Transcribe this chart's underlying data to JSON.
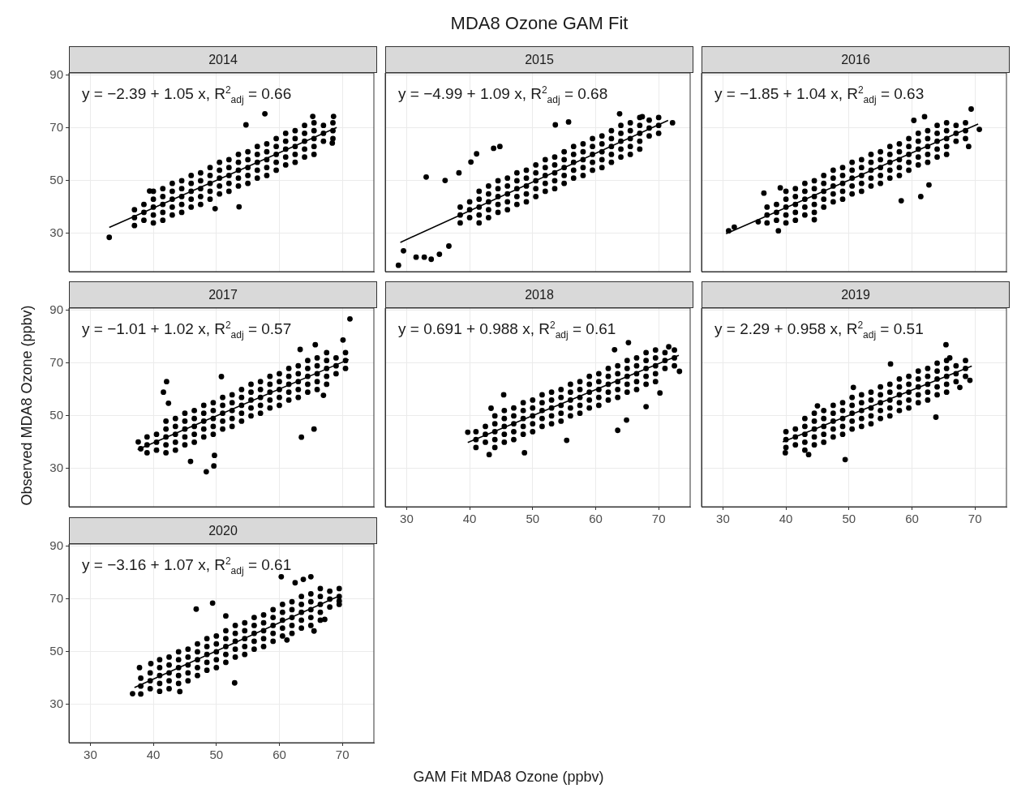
{
  "chart_data": [
    {
      "type": "scatter",
      "subtitle": "2014",
      "annotations": [
        "y = −2.39 + 1.05 x, R$^{2}$$_{adj}$ = 0.66"
      ],
      "xlim": [
        26.6,
        75
      ],
      "ylim": [
        15.5,
        90.9
      ],
      "xticks": [
        30,
        40,
        50,
        60,
        70
      ],
      "yticks": [
        30,
        50,
        70,
        90
      ],
      "grid": true,
      "marker": "circle",
      "tick_labels": "y",
      "series": [
        {
          "type": "scatter",
          "color": "#000000",
          "x": [
            37,
            37,
            37,
            38.5,
            38.5,
            38.5,
            40,
            40,
            40,
            40,
            40,
            41.5,
            41.5,
            41.5,
            41.5,
            41.5,
            43,
            43,
            43,
            43,
            43,
            44.5,
            44.5,
            44.5,
            44.5,
            44.5,
            46,
            46,
            46,
            46,
            46,
            47.5,
            47.5,
            47.5,
            47.5,
            47.5,
            49,
            49,
            49,
            49,
            49,
            50.5,
            50.5,
            50.5,
            50.5,
            50.5,
            52,
            52,
            52,
            52,
            52,
            53.5,
            53.5,
            53.5,
            53.5,
            53.5,
            55,
            55,
            55,
            55,
            55,
            56.5,
            56.5,
            56.5,
            56.5,
            56.5,
            58,
            58,
            58,
            58,
            58,
            59.5,
            59.5,
            59.5,
            59.5,
            59.5,
            61,
            61,
            61,
            61,
            61,
            62.5,
            62.5,
            62.5,
            62.5,
            62.5,
            64,
            64,
            64,
            64,
            64,
            65.5,
            65.5,
            65.5,
            65.5,
            65.5,
            67,
            67,
            67,
            68.5,
            68.5,
            68.5,
            33,
            57.7,
            54.7,
            65.3,
            68.6,
            68.4,
            39.4,
            53.6,
            49.8
          ],
          "values": [
            33,
            36,
            39,
            35,
            38,
            41,
            34,
            37,
            40,
            43,
            46,
            35,
            38,
            41,
            44,
            47,
            37,
            40,
            43,
            46,
            49,
            38,
            41,
            44,
            47,
            50,
            40,
            43,
            46,
            49,
            52,
            41,
            44,
            47,
            50,
            53,
            43,
            46,
            49,
            52,
            55,
            45,
            48,
            51,
            54,
            57,
            46,
            49,
            52,
            55,
            58,
            48,
            51,
            54,
            57,
            60,
            49,
            52,
            55,
            58,
            61,
            51,
            54,
            57,
            60,
            63,
            52,
            55,
            58,
            61,
            64,
            54,
            57,
            60,
            63,
            66,
            56,
            59,
            62,
            65,
            68,
            57,
            60,
            63,
            66,
            69,
            59,
            62,
            65,
            68,
            71,
            60,
            63,
            66,
            69,
            72,
            65,
            68,
            71,
            66,
            69,
            72,
            28.5,
            75.4,
            71.2,
            74.4,
            74.4,
            64.3,
            46.1,
            40.1,
            39.4
          ]
        },
        {
          "type": "line",
          "marker": "none",
          "color": "#000000",
          "x": [
            33,
            69.1
          ],
          "values": [
            32.3,
            70.2
          ]
        }
      ]
    },
    {
      "type": "scatter",
      "title": "MDA8 Ozone GAM Fit",
      "subtitle": "2015",
      "annotations": [
        "y = −4.99 + 1.09 x, R$^{2}$$_{adj}$ = 0.68"
      ],
      "xlim": [
        26.6,
        75
      ],
      "ylim": [
        15.5,
        90.9
      ],
      "xticks": [
        30,
        40,
        50,
        60,
        70
      ],
      "yticks": [
        30,
        50,
        70,
        90
      ],
      "grid": true,
      "marker": "circle",
      "tick_labels": false,
      "series": [
        {
          "type": "scatter",
          "color": "#000000",
          "x": [
            38.5,
            38.5,
            38.5,
            40,
            40,
            40,
            41.5,
            41.5,
            41.5,
            41.5,
            41.5,
            43,
            43,
            43,
            43,
            43,
            44.5,
            44.5,
            44.5,
            44.5,
            44.5,
            46,
            46,
            46,
            46,
            46,
            47.5,
            47.5,
            47.5,
            47.5,
            47.5,
            49,
            49,
            49,
            49,
            49,
            50.5,
            50.5,
            50.5,
            50.5,
            50.5,
            52,
            52,
            52,
            52,
            52,
            53.5,
            53.5,
            53.5,
            53.5,
            53.5,
            55,
            55,
            55,
            55,
            55,
            56.5,
            56.5,
            56.5,
            56.5,
            56.5,
            58,
            58,
            58,
            58,
            58,
            59.5,
            59.5,
            59.5,
            59.5,
            59.5,
            61,
            61,
            61,
            61,
            61,
            62.5,
            62.5,
            62.5,
            62.5,
            62.5,
            64,
            64,
            64,
            64,
            64,
            65.5,
            65.5,
            65.5,
            65.5,
            65.5,
            67,
            67,
            67,
            67,
            67,
            68.5,
            68.5,
            68.5,
            70,
            70,
            70,
            28.7,
            29.5,
            31.5,
            32.8,
            33.9,
            35.2,
            36.7,
            33.1,
            36.1,
            38.3,
            41.1,
            40.2,
            43.8,
            44.8,
            72.2,
            63.8,
            53.6,
            55.7,
            67.4
          ],
          "values": [
            34,
            37,
            40,
            36,
            39,
            42,
            34,
            37,
            40,
            43,
            46,
            36,
            39,
            42,
            45,
            48,
            38,
            41,
            44,
            47,
            50,
            39,
            42,
            45,
            48,
            51,
            41,
            44,
            47,
            50,
            53,
            42,
            45,
            48,
            51,
            54,
            44,
            47,
            50,
            53,
            56,
            46,
            49,
            52,
            55,
            58,
            47,
            50,
            53,
            56,
            59,
            49,
            52,
            55,
            58,
            61,
            51,
            54,
            57,
            60,
            63,
            52,
            55,
            58,
            61,
            64,
            54,
            57,
            60,
            63,
            66,
            55,
            58,
            61,
            64,
            67,
            57,
            60,
            63,
            66,
            69,
            59,
            62,
            65,
            68,
            71,
            60,
            63,
            66,
            69,
            72,
            62,
            65,
            68,
            71,
            74,
            67,
            70,
            73,
            68,
            71,
            74,
            17.9,
            23.4,
            21,
            21,
            20.2,
            22.1,
            25.2,
            51.4,
            50.1,
            53,
            60.2,
            57.1,
            62.3,
            63,
            72,
            75.4,
            71.2,
            72.3,
            74.3
          ]
        },
        {
          "type": "line",
          "marker": "none",
          "color": "#000000",
          "x": [
            29,
            71.5
          ],
          "values": [
            26.6,
            72.9
          ]
        }
      ]
    },
    {
      "type": "scatter",
      "subtitle": "2016",
      "annotations": [
        "y = −1.85 + 1.04 x, R$^{2}$$_{adj}$ = 0.63"
      ],
      "xlim": [
        26.6,
        75
      ],
      "ylim": [
        15.5,
        90.9
      ],
      "xticks": [
        30,
        40,
        50,
        60,
        70
      ],
      "yticks": [
        30,
        50,
        70,
        90
      ],
      "grid": true,
      "marker": "circle",
      "tick_labels": false,
      "series": [
        {
          "type": "scatter",
          "color": "#000000",
          "x": [
            37,
            37,
            37,
            38.5,
            38.5,
            38.5,
            40,
            40,
            40,
            40,
            40,
            41.5,
            41.5,
            41.5,
            41.5,
            41.5,
            43,
            43,
            43,
            43,
            43,
            44.5,
            44.5,
            44.5,
            44.5,
            44.5,
            46,
            46,
            46,
            46,
            46,
            47.5,
            47.5,
            47.5,
            47.5,
            47.5,
            49,
            49,
            49,
            49,
            49,
            50.5,
            50.5,
            50.5,
            50.5,
            50.5,
            52,
            52,
            52,
            52,
            52,
            53.5,
            53.5,
            53.5,
            53.5,
            53.5,
            55,
            55,
            55,
            55,
            55,
            56.5,
            56.5,
            56.5,
            56.5,
            56.5,
            58,
            58,
            58,
            58,
            58,
            59.5,
            59.5,
            59.5,
            59.5,
            59.5,
            61,
            61,
            61,
            61,
            61,
            62.5,
            62.5,
            62.5,
            62.5,
            62.5,
            64,
            64,
            64,
            64,
            64,
            65.5,
            65.5,
            65.5,
            65.5,
            65.5,
            67,
            67,
            67,
            68.5,
            68.5,
            68.5,
            30.9,
            31.8,
            35.6,
            38.8,
            36.5,
            39.1,
            44.5,
            69.4,
            62,
            60.3,
            70.7,
            69,
            62.7,
            61.4,
            58.3
          ],
          "values": [
            34,
            37,
            40,
            35,
            38,
            41,
            34,
            37,
            40,
            43,
            46,
            35,
            38,
            41,
            44,
            47,
            37,
            40,
            43,
            46,
            49,
            38,
            41,
            44,
            47,
            50,
            40,
            43,
            46,
            49,
            52,
            42,
            45,
            48,
            51,
            54,
            43,
            46,
            49,
            52,
            55,
            45,
            48,
            51,
            54,
            57,
            46,
            49,
            52,
            55,
            58,
            48,
            51,
            54,
            57,
            60,
            49,
            52,
            55,
            58,
            61,
            51,
            54,
            57,
            60,
            63,
            52,
            55,
            58,
            61,
            64,
            54,
            57,
            60,
            63,
            66,
            56,
            59,
            62,
            65,
            68,
            57,
            60,
            63,
            66,
            69,
            59,
            62,
            65,
            68,
            71,
            60,
            63,
            66,
            69,
            72,
            65,
            68,
            71,
            66,
            69,
            72,
            31,
            32.4,
            34.4,
            31,
            45.3,
            47.3,
            35.2,
            77.2,
            74.3,
            72.9,
            69.5,
            63,
            48.4,
            44,
            42.4
          ]
        },
        {
          "type": "line",
          "marker": "none",
          "color": "#000000",
          "x": [
            30.5,
            70.5
          ],
          "values": [
            29.9,
            71.5
          ]
        }
      ]
    },
    {
      "type": "scatter",
      "subtitle": "2017",
      "ylabel": "Observed MDA8 Ozone (ppbv)",
      "annotations": [
        "y = −1.01 + 1.02 x, R$^{2}$$_{adj}$ = 0.57"
      ],
      "xlim": [
        26.6,
        75
      ],
      "ylim": [
        15.5,
        90.9
      ],
      "xticks": [
        30,
        40,
        50,
        60,
        70
      ],
      "yticks": [
        30,
        50,
        70,
        90
      ],
      "grid": true,
      "marker": "circle",
      "tick_labels": "y",
      "series": [
        {
          "type": "scatter",
          "color": "#000000",
          "x": [
            39,
            39,
            39,
            40.5,
            40.5,
            40.5,
            42,
            42,
            42,
            42,
            42,
            43.5,
            43.5,
            43.5,
            43.5,
            43.5,
            45,
            45,
            45,
            45,
            45,
            46.5,
            46.5,
            46.5,
            46.5,
            46.5,
            48,
            48,
            48,
            48,
            48,
            49.5,
            49.5,
            49.5,
            49.5,
            49.5,
            51,
            51,
            51,
            51,
            51,
            52.5,
            52.5,
            52.5,
            52.5,
            52.5,
            54,
            54,
            54,
            54,
            54,
            55.5,
            55.5,
            55.5,
            55.5,
            55.5,
            57,
            57,
            57,
            57,
            57,
            58.5,
            58.5,
            58.5,
            58.5,
            58.5,
            60,
            60,
            60,
            60,
            60,
            61.5,
            61.5,
            61.5,
            61.5,
            61.5,
            63,
            63,
            63,
            63,
            63,
            64.5,
            64.5,
            64.5,
            64.5,
            64.5,
            66,
            66,
            66,
            66,
            66,
            67.5,
            67.5,
            67.5,
            67.5,
            67.5,
            69,
            69,
            69,
            70.5,
            70.5,
            70.5,
            71.2,
            70.1,
            65.7,
            63.3,
            37.6,
            38,
            42.1,
            41.6,
            42.4,
            48.4,
            49.6,
            45.9,
            49.7,
            63.5,
            65.5,
            67,
            50.8
          ],
          "values": [
            36,
            39,
            42,
            37,
            40,
            43,
            36,
            39,
            42,
            45,
            48,
            37,
            40,
            43,
            46,
            49,
            39,
            42,
            45,
            48,
            51,
            40,
            43,
            46,
            49,
            52,
            42,
            45,
            48,
            51,
            54,
            43,
            46,
            49,
            52,
            55,
            45,
            48,
            51,
            54,
            57,
            46,
            49,
            52,
            55,
            58,
            48,
            51,
            54,
            57,
            60,
            50,
            53,
            56,
            59,
            62,
            51,
            54,
            57,
            60,
            63,
            53,
            56,
            59,
            62,
            65,
            54,
            57,
            60,
            63,
            66,
            56,
            59,
            62,
            65,
            68,
            57,
            60,
            63,
            66,
            69,
            59,
            62,
            65,
            68,
            71,
            60,
            63,
            66,
            69,
            72,
            62,
            65,
            68,
            71,
            74,
            66,
            69,
            72,
            68,
            71,
            74,
            86.8,
            78.8,
            77,
            75.2,
            40.1,
            37.5,
            63,
            59,
            54.8,
            28.8,
            31,
            32.7,
            35,
            41.9,
            45,
            57.8,
            64.9
          ]
        },
        {
          "type": "line",
          "marker": "none",
          "color": "#000000",
          "x": [
            37.5,
            71
          ],
          "values": [
            37.2,
            71.4
          ]
        }
      ]
    },
    {
      "type": "scatter",
      "subtitle": "2018",
      "annotations": [
        "y = 0.691 + 0.988 x, R$^{2}$$_{adj}$ = 0.61"
      ],
      "xlim": [
        26.6,
        75
      ],
      "ylim": [
        15.5,
        90.9
      ],
      "xticks": [
        30,
        40,
        50,
        60,
        70
      ],
      "yticks": [
        30,
        50,
        70,
        90
      ],
      "grid": true,
      "marker": "circle",
      "tick_labels": "x",
      "series": [
        {
          "type": "scatter",
          "color": "#000000",
          "x": [
            41,
            41,
            41,
            42.5,
            42.5,
            42.5,
            44,
            44,
            44,
            44,
            44,
            45.5,
            45.5,
            45.5,
            45.5,
            45.5,
            47,
            47,
            47,
            47,
            47,
            48.5,
            48.5,
            48.5,
            48.5,
            48.5,
            50,
            50,
            50,
            50,
            50,
            51.5,
            51.5,
            51.5,
            51.5,
            51.5,
            53,
            53,
            53,
            53,
            53,
            54.5,
            54.5,
            54.5,
            54.5,
            54.5,
            56,
            56,
            56,
            56,
            56,
            57.5,
            57.5,
            57.5,
            57.5,
            57.5,
            59,
            59,
            59,
            59,
            59,
            60.5,
            60.5,
            60.5,
            60.5,
            60.5,
            62,
            62,
            62,
            62,
            62,
            63.5,
            63.5,
            63.5,
            63.5,
            63.5,
            65,
            65,
            65,
            65,
            65,
            66.5,
            66.5,
            66.5,
            66.5,
            66.5,
            68,
            68,
            68,
            68,
            68,
            69.5,
            69.5,
            69.5,
            69.5,
            69.5,
            71,
            71,
            71,
            72.5,
            72.5,
            72.5,
            43.1,
            39.7,
            43.4,
            45.4,
            63,
            65.2,
            71.6,
            73.3,
            70.2,
            68,
            64.9,
            63.5,
            55.4,
            48.7
          ],
          "values": [
            38,
            41,
            44,
            40,
            43,
            46,
            38,
            41,
            44,
            47,
            50,
            40,
            43,
            46,
            49,
            52,
            41,
            44,
            47,
            50,
            53,
            43,
            46,
            49,
            52,
            55,
            44,
            47,
            50,
            53,
            56,
            46,
            49,
            52,
            55,
            58,
            47,
            50,
            53,
            56,
            59,
            48,
            51,
            54,
            57,
            60,
            50,
            53,
            56,
            59,
            62,
            51,
            54,
            57,
            60,
            63,
            53,
            56,
            59,
            62,
            65,
            54,
            57,
            60,
            63,
            66,
            56,
            59,
            62,
            65,
            68,
            57,
            60,
            63,
            66,
            69,
            59,
            62,
            65,
            68,
            71,
            60,
            63,
            66,
            69,
            72,
            62,
            65,
            68,
            71,
            74,
            63,
            66,
            69,
            72,
            75,
            68,
            71,
            74,
            69,
            72,
            75,
            35.3,
            43.8,
            52.9,
            58,
            75.1,
            77.8,
            76.2,
            66.9,
            58.7,
            53.5,
            48.4,
            44.5,
            40.7,
            36
          ]
        },
        {
          "type": "line",
          "marker": "none",
          "color": "#000000",
          "x": [
            39.7,
            73.2
          ],
          "values": [
            39.9,
            73
          ]
        }
      ]
    },
    {
      "type": "scatter",
      "subtitle": "2019",
      "annotations": [
        "y = 2.29 + 0.958 x, R$^{2}$$_{adj}$ = 0.51"
      ],
      "xlim": [
        26.6,
        75
      ],
      "ylim": [
        15.5,
        90.9
      ],
      "xticks": [
        30,
        40,
        50,
        60,
        70
      ],
      "yticks": [
        30,
        50,
        70,
        90
      ],
      "grid": true,
      "marker": "circle",
      "tick_labels": "x",
      "series": [
        {
          "type": "scatter",
          "color": "#000000",
          "x": [
            40,
            40,
            40,
            41.5,
            41.5,
            41.5,
            43,
            43,
            43,
            43,
            43,
            44.5,
            44.5,
            44.5,
            44.5,
            44.5,
            46,
            46,
            46,
            46,
            46,
            47.5,
            47.5,
            47.5,
            47.5,
            47.5,
            49,
            49,
            49,
            49,
            49,
            50.5,
            50.5,
            50.5,
            50.5,
            50.5,
            52,
            52,
            52,
            52,
            52,
            53.5,
            53.5,
            53.5,
            53.5,
            53.5,
            55,
            55,
            55,
            55,
            55,
            56.5,
            56.5,
            56.5,
            56.5,
            56.5,
            58,
            58,
            58,
            58,
            58,
            59.5,
            59.5,
            59.5,
            59.5,
            59.5,
            61,
            61,
            61,
            61,
            61,
            62.5,
            62.5,
            62.5,
            62.5,
            62.5,
            64,
            64,
            64,
            64,
            64,
            65.5,
            65.5,
            65.5,
            65.5,
            65.5,
            67,
            67,
            67,
            68.5,
            68.5,
            68.5,
            39.9,
            43.6,
            49.4,
            65.4,
            66,
            69.2,
            67.6,
            63.8,
            56.6,
            45,
            50.7
          ],
          "values": [
            38,
            41,
            44,
            39,
            42,
            45,
            37,
            40,
            43,
            46,
            49,
            39,
            42,
            45,
            48,
            51,
            40,
            43,
            46,
            49,
            52,
            42,
            45,
            48,
            51,
            54,
            43,
            46,
            49,
            52,
            55,
            45,
            48,
            51,
            54,
            57,
            46,
            49,
            52,
            55,
            58,
            47,
            50,
            53,
            56,
            59,
            49,
            52,
            55,
            58,
            61,
            50,
            53,
            56,
            59,
            62,
            52,
            55,
            58,
            61,
            64,
            53,
            56,
            59,
            62,
            65,
            55,
            58,
            61,
            64,
            67,
            56,
            59,
            62,
            65,
            68,
            58,
            61,
            64,
            67,
            70,
            59,
            62,
            65,
            68,
            71,
            63,
            66,
            69,
            65,
            68,
            71,
            36,
            35.3,
            33.4,
            77,
            72,
            63.5,
            60.8,
            49.5,
            69.7,
            53.8,
            60.8
          ]
        },
        {
          "type": "line",
          "marker": "none",
          "color": "#000000",
          "x": [
            39.5,
            69.5
          ],
          "values": [
            40.1,
            68.9
          ]
        }
      ]
    },
    {
      "type": "scatter",
      "subtitle": "2020",
      "xlabel": "GAM Fit MDA8 Ozone (ppbv)",
      "annotations": [
        "y = −3.16 + 1.07 x, R$^{2}$$_{adj}$ = 0.61"
      ],
      "xlim": [
        26.6,
        75
      ],
      "ylim": [
        15.5,
        90.9
      ],
      "xticks": [
        30,
        40,
        50,
        60,
        70
      ],
      "yticks": [
        30,
        50,
        70,
        90
      ],
      "grid": true,
      "marker": "circle",
      "series": [
        {
          "type": "scatter",
          "color": "#000000",
          "x": [
            38,
            38,
            38,
            39.5,
            39.5,
            39.5,
            41,
            41,
            41,
            41,
            41,
            42.5,
            42.5,
            42.5,
            42.5,
            42.5,
            44,
            44,
            44,
            44,
            44,
            45.5,
            45.5,
            45.5,
            45.5,
            45.5,
            47,
            47,
            47,
            47,
            47,
            48.5,
            48.5,
            48.5,
            48.5,
            48.5,
            50,
            50,
            50,
            50,
            50,
            51.5,
            51.5,
            51.5,
            51.5,
            51.5,
            53,
            53,
            53,
            53,
            53,
            54.5,
            54.5,
            54.5,
            54.5,
            54.5,
            56,
            56,
            56,
            56,
            56,
            57.5,
            57.5,
            57.5,
            57.5,
            57.5,
            59,
            59,
            59,
            59,
            59,
            60.5,
            60.5,
            60.5,
            60.5,
            60.5,
            62,
            62,
            62,
            62,
            62,
            63.5,
            63.5,
            63.5,
            63.5,
            63.5,
            65,
            65,
            65,
            65,
            65,
            66.5,
            66.5,
            66.5,
            66.5,
            66.5,
            68,
            68,
            68,
            69.5,
            69.5,
            69.5,
            36.7,
            37.8,
            39.6,
            44.2,
            46.8,
            49.4,
            51.5,
            52.9,
            60.3,
            62.5,
            63.8,
            65,
            69.5,
            67.2,
            65.5,
            61.2
          ],
          "values": [
            34,
            37,
            40,
            36,
            39,
            42,
            35,
            38,
            41,
            44,
            47,
            36,
            39,
            42,
            45,
            48,
            38,
            41,
            44,
            47,
            50,
            39,
            42,
            45,
            48,
            51,
            41,
            44,
            47,
            50,
            53,
            43,
            46,
            49,
            52,
            55,
            44,
            47,
            50,
            53,
            56,
            46,
            49,
            52,
            55,
            58,
            48,
            51,
            54,
            57,
            60,
            49,
            52,
            55,
            58,
            61,
            51,
            54,
            57,
            60,
            63,
            52,
            55,
            58,
            61,
            64,
            54,
            57,
            60,
            63,
            66,
            56,
            59,
            62,
            65,
            68,
            57,
            60,
            63,
            66,
            69,
            59,
            62,
            65,
            68,
            71,
            60,
            63,
            66,
            69,
            72,
            62,
            65,
            68,
            71,
            74,
            67,
            70,
            73,
            68,
            71,
            74,
            34.1,
            44,
            45.5,
            34.9,
            66.2,
            68.5,
            63.6,
            38.2,
            78.5,
            76.2,
            77.5,
            78.5,
            69.3,
            62.3,
            57.9,
            54.5
          ]
        },
        {
          "type": "line",
          "marker": "none",
          "color": "#000000",
          "x": [
            37,
            69.5
          ],
          "values": [
            36.4,
            71.2
          ]
        }
      ]
    }
  ]
}
